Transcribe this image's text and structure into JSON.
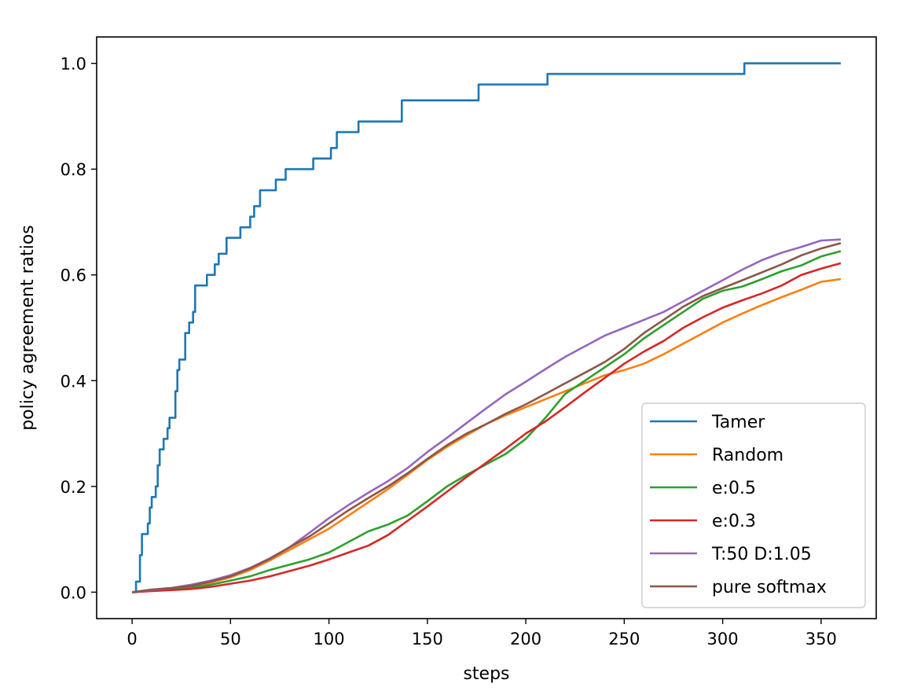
{
  "chart_data": {
    "type": "line",
    "title": "",
    "xlabel": "steps",
    "ylabel": "policy agreement ratios",
    "xlim": [
      -18,
      378
    ],
    "ylim": [
      -0.05,
      1.05
    ],
    "xticks": [
      0,
      50,
      100,
      150,
      200,
      250,
      300,
      350
    ],
    "xtick_labels": [
      "0",
      "50",
      "100",
      "150",
      "200",
      "250",
      "300",
      "350"
    ],
    "yticks": [
      0.0,
      0.2,
      0.4,
      0.6,
      0.8,
      1.0
    ],
    "ytick_labels": [
      "0.0",
      "0.2",
      "0.4",
      "0.6",
      "0.8",
      "1.0"
    ],
    "grid": false,
    "legend_position": "lower-right",
    "series": [
      {
        "name": "Tamer",
        "color": "#1f77b4",
        "step": true,
        "points": [
          [
            0,
            0
          ],
          [
            2,
            0.02
          ],
          [
            4,
            0.07
          ],
          [
            5,
            0.11
          ],
          [
            7,
            0.11
          ],
          [
            8,
            0.13
          ],
          [
            9,
            0.16
          ],
          [
            10,
            0.18
          ],
          [
            11,
            0.18
          ],
          [
            12,
            0.2
          ],
          [
            13,
            0.24
          ],
          [
            14,
            0.27
          ],
          [
            16,
            0.29
          ],
          [
            17,
            0.29
          ],
          [
            18,
            0.31
          ],
          [
            19,
            0.33
          ],
          [
            21,
            0.33
          ],
          [
            22,
            0.38
          ],
          [
            23,
            0.42
          ],
          [
            24,
            0.44
          ],
          [
            26,
            0.44
          ],
          [
            27,
            0.49
          ],
          [
            29,
            0.51
          ],
          [
            31,
            0.53
          ],
          [
            32,
            0.58
          ],
          [
            37,
            0.58
          ],
          [
            38,
            0.6
          ],
          [
            41,
            0.6
          ],
          [
            42,
            0.62
          ],
          [
            44,
            0.64
          ],
          [
            47,
            0.64
          ],
          [
            48,
            0.67
          ],
          [
            54,
            0.67
          ],
          [
            55,
            0.69
          ],
          [
            59,
            0.69
          ],
          [
            60,
            0.71
          ],
          [
            62,
            0.73
          ],
          [
            64,
            0.73
          ],
          [
            65,
            0.76
          ],
          [
            72,
            0.76
          ],
          [
            73,
            0.78
          ],
          [
            77,
            0.78
          ],
          [
            78,
            0.8
          ],
          [
            91,
            0.8
          ],
          [
            92,
            0.82
          ],
          [
            100,
            0.82
          ],
          [
            101,
            0.84
          ],
          [
            103,
            0.84
          ],
          [
            104,
            0.87
          ],
          [
            114,
            0.87
          ],
          [
            115,
            0.89
          ],
          [
            136,
            0.89
          ],
          [
            137,
            0.93
          ],
          [
            175,
            0.93
          ],
          [
            176,
            0.96
          ],
          [
            210,
            0.96
          ],
          [
            211,
            0.98
          ],
          [
            310,
            0.98
          ],
          [
            311,
            1.0
          ],
          [
            360,
            1.0
          ]
        ]
      },
      {
        "name": "Random",
        "color": "#ff7f0e",
        "step": false,
        "points": [
          [
            0,
            0
          ],
          [
            10,
            0.003
          ],
          [
            20,
            0.006
          ],
          [
            30,
            0.01
          ],
          [
            40,
            0.018
          ],
          [
            50,
            0.028
          ],
          [
            60,
            0.042
          ],
          [
            70,
            0.06
          ],
          [
            80,
            0.08
          ],
          [
            90,
            0.1
          ],
          [
            100,
            0.12
          ],
          [
            110,
            0.145
          ],
          [
            120,
            0.17
          ],
          [
            130,
            0.195
          ],
          [
            140,
            0.222
          ],
          [
            150,
            0.25
          ],
          [
            160,
            0.275
          ],
          [
            170,
            0.297
          ],
          [
            180,
            0.318
          ],
          [
            190,
            0.335
          ],
          [
            200,
            0.35
          ],
          [
            210,
            0.365
          ],
          [
            220,
            0.38
          ],
          [
            230,
            0.395
          ],
          [
            240,
            0.41
          ],
          [
            250,
            0.42
          ],
          [
            260,
            0.432
          ],
          [
            270,
            0.45
          ],
          [
            280,
            0.47
          ],
          [
            290,
            0.49
          ],
          [
            300,
            0.51
          ],
          [
            310,
            0.527
          ],
          [
            320,
            0.543
          ],
          [
            330,
            0.558
          ],
          [
            340,
            0.572
          ],
          [
            350,
            0.587
          ],
          [
            360,
            0.592
          ]
        ]
      },
      {
        "name": "e:0.5",
        "color": "#2ca02c",
        "step": false,
        "points": [
          [
            0,
            0
          ],
          [
            10,
            0.003
          ],
          [
            20,
            0.006
          ],
          [
            30,
            0.009
          ],
          [
            40,
            0.014
          ],
          [
            50,
            0.022
          ],
          [
            60,
            0.03
          ],
          [
            70,
            0.042
          ],
          [
            80,
            0.052
          ],
          [
            90,
            0.062
          ],
          [
            100,
            0.075
          ],
          [
            110,
            0.095
          ],
          [
            120,
            0.115
          ],
          [
            130,
            0.128
          ],
          [
            140,
            0.145
          ],
          [
            150,
            0.172
          ],
          [
            160,
            0.2
          ],
          [
            170,
            0.222
          ],
          [
            180,
            0.242
          ],
          [
            190,
            0.262
          ],
          [
            200,
            0.29
          ],
          [
            210,
            0.33
          ],
          [
            220,
            0.375
          ],
          [
            230,
            0.4
          ],
          [
            240,
            0.425
          ],
          [
            250,
            0.45
          ],
          [
            260,
            0.48
          ],
          [
            270,
            0.505
          ],
          [
            280,
            0.53
          ],
          [
            290,
            0.555
          ],
          [
            300,
            0.57
          ],
          [
            310,
            0.578
          ],
          [
            320,
            0.592
          ],
          [
            330,
            0.607
          ],
          [
            340,
            0.618
          ],
          [
            350,
            0.635
          ],
          [
            360,
            0.645
          ]
        ]
      },
      {
        "name": "e:0.3",
        "color": "#d62728",
        "step": false,
        "points": [
          [
            0,
            0
          ],
          [
            10,
            0.002
          ],
          [
            20,
            0.004
          ],
          [
            30,
            0.006
          ],
          [
            40,
            0.01
          ],
          [
            50,
            0.016
          ],
          [
            60,
            0.022
          ],
          [
            70,
            0.03
          ],
          [
            80,
            0.04
          ],
          [
            90,
            0.05
          ],
          [
            100,
            0.062
          ],
          [
            110,
            0.075
          ],
          [
            120,
            0.088
          ],
          [
            130,
            0.108
          ],
          [
            140,
            0.135
          ],
          [
            150,
            0.162
          ],
          [
            160,
            0.19
          ],
          [
            170,
            0.218
          ],
          [
            180,
            0.245
          ],
          [
            190,
            0.272
          ],
          [
            200,
            0.3
          ],
          [
            210,
            0.323
          ],
          [
            220,
            0.35
          ],
          [
            230,
            0.378
          ],
          [
            240,
            0.405
          ],
          [
            250,
            0.432
          ],
          [
            260,
            0.455
          ],
          [
            270,
            0.475
          ],
          [
            280,
            0.5
          ],
          [
            290,
            0.52
          ],
          [
            300,
            0.538
          ],
          [
            310,
            0.552
          ],
          [
            320,
            0.565
          ],
          [
            330,
            0.58
          ],
          [
            340,
            0.6
          ],
          [
            350,
            0.612
          ],
          [
            360,
            0.622
          ]
        ]
      },
      {
        "name": "T:50 D:1.05",
        "color": "#9467bd",
        "step": false,
        "points": [
          [
            0,
            0
          ],
          [
            10,
            0.004
          ],
          [
            20,
            0.008
          ],
          [
            30,
            0.014
          ],
          [
            40,
            0.022
          ],
          [
            50,
            0.032
          ],
          [
            60,
            0.046
          ],
          [
            70,
            0.064
          ],
          [
            80,
            0.085
          ],
          [
            90,
            0.112
          ],
          [
            100,
            0.14
          ],
          [
            110,
            0.165
          ],
          [
            120,
            0.188
          ],
          [
            130,
            0.21
          ],
          [
            140,
            0.235
          ],
          [
            150,
            0.265
          ],
          [
            160,
            0.292
          ],
          [
            170,
            0.32
          ],
          [
            180,
            0.348
          ],
          [
            190,
            0.375
          ],
          [
            200,
            0.398
          ],
          [
            210,
            0.422
          ],
          [
            220,
            0.445
          ],
          [
            230,
            0.465
          ],
          [
            240,
            0.485
          ],
          [
            250,
            0.5
          ],
          [
            260,
            0.515
          ],
          [
            270,
            0.53
          ],
          [
            280,
            0.55
          ],
          [
            290,
            0.57
          ],
          [
            300,
            0.59
          ],
          [
            310,
            0.61
          ],
          [
            320,
            0.628
          ],
          [
            330,
            0.642
          ],
          [
            340,
            0.653
          ],
          [
            350,
            0.665
          ],
          [
            360,
            0.667
          ]
        ]
      },
      {
        "name": "pure softmax",
        "color": "#8c564b",
        "step": false,
        "points": [
          [
            0,
            0
          ],
          [
            10,
            0.005
          ],
          [
            20,
            0.008
          ],
          [
            30,
            0.012
          ],
          [
            40,
            0.02
          ],
          [
            50,
            0.03
          ],
          [
            60,
            0.045
          ],
          [
            70,
            0.063
          ],
          [
            80,
            0.085
          ],
          [
            90,
            0.105
          ],
          [
            100,
            0.13
          ],
          [
            110,
            0.155
          ],
          [
            120,
            0.178
          ],
          [
            130,
            0.2
          ],
          [
            140,
            0.225
          ],
          [
            150,
            0.252
          ],
          [
            160,
            0.278
          ],
          [
            170,
            0.3
          ],
          [
            180,
            0.318
          ],
          [
            190,
            0.338
          ],
          [
            200,
            0.355
          ],
          [
            210,
            0.375
          ],
          [
            220,
            0.395
          ],
          [
            230,
            0.415
          ],
          [
            240,
            0.435
          ],
          [
            250,
            0.46
          ],
          [
            260,
            0.49
          ],
          [
            270,
            0.515
          ],
          [
            280,
            0.54
          ],
          [
            290,
            0.56
          ],
          [
            300,
            0.575
          ],
          [
            310,
            0.59
          ],
          [
            320,
            0.605
          ],
          [
            330,
            0.62
          ],
          [
            340,
            0.637
          ],
          [
            350,
            0.65
          ],
          [
            360,
            0.66
          ]
        ]
      }
    ]
  }
}
